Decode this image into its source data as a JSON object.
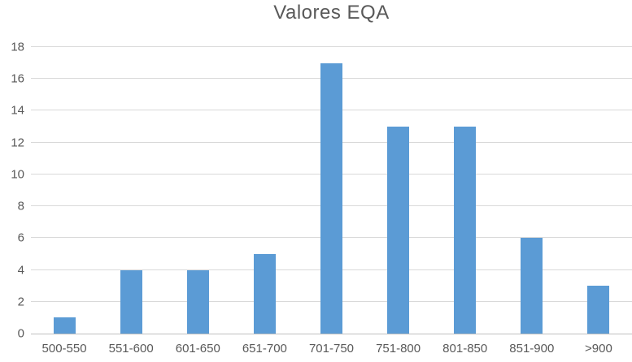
{
  "title": "Valores EQA",
  "colors": {
    "bar": "#5b9bd5",
    "gridline": "#d9d9d9",
    "axis_line": "#bfbfbf",
    "text": "#595959"
  },
  "chart_data": {
    "type": "bar",
    "title": "Valores EQA",
    "categories": [
      "500-550",
      "551-600",
      "601-650",
      "651-700",
      "701-750",
      "751-800",
      "801-850",
      "851-900",
      ">900"
    ],
    "values": [
      1,
      4,
      4,
      5,
      17,
      13,
      13,
      6,
      3
    ],
    "xlabel": "",
    "ylabel": "",
    "ylim": [
      0,
      18
    ],
    "ytick_step": 2,
    "grid": true,
    "legend": false,
    "bar_color": "#5b9bd5"
  }
}
